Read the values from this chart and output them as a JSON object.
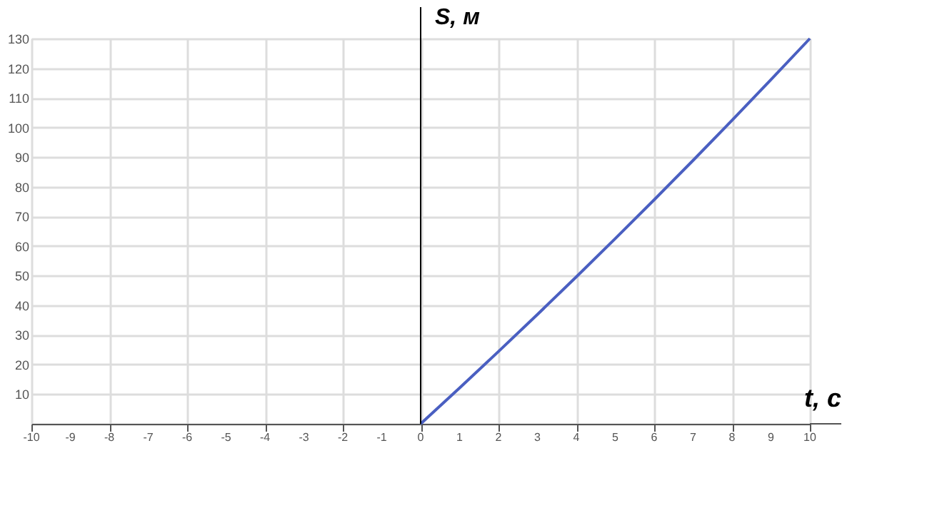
{
  "chart_data": {
    "type": "line",
    "xlabel": "t, с",
    "ylabel": "S, м",
    "x": [
      0,
      1,
      2,
      3,
      4,
      5,
      6,
      7,
      8,
      9,
      10
    ],
    "series": [
      {
        "color": "#4a5fc1",
        "values": [
          0,
          12.1,
          24.4,
          36.9,
          49.6,
          62.5,
          75.6,
          88.9,
          102.4,
          116.1,
          130
        ]
      }
    ],
    "xlim": [
      -10,
      10
    ],
    "xticks": [
      -10,
      -9,
      -8,
      -7,
      -6,
      -5,
      -4,
      -3,
      -2,
      -1,
      0,
      1,
      2,
      3,
      4,
      5,
      6,
      7,
      8,
      9,
      10
    ],
    "ylim": [
      0,
      130
    ],
    "yticks": [
      {
        "value": 0,
        "label": null
      },
      10,
      20,
      30,
      40,
      50,
      60,
      70,
      80,
      90,
      100,
      110,
      120,
      130
    ],
    "ref_lines": [
      {
        "axis": "x",
        "value": 0,
        "color": "#000000"
      }
    ],
    "grid": true,
    "marker": "none",
    "line_style": "solid"
  }
}
